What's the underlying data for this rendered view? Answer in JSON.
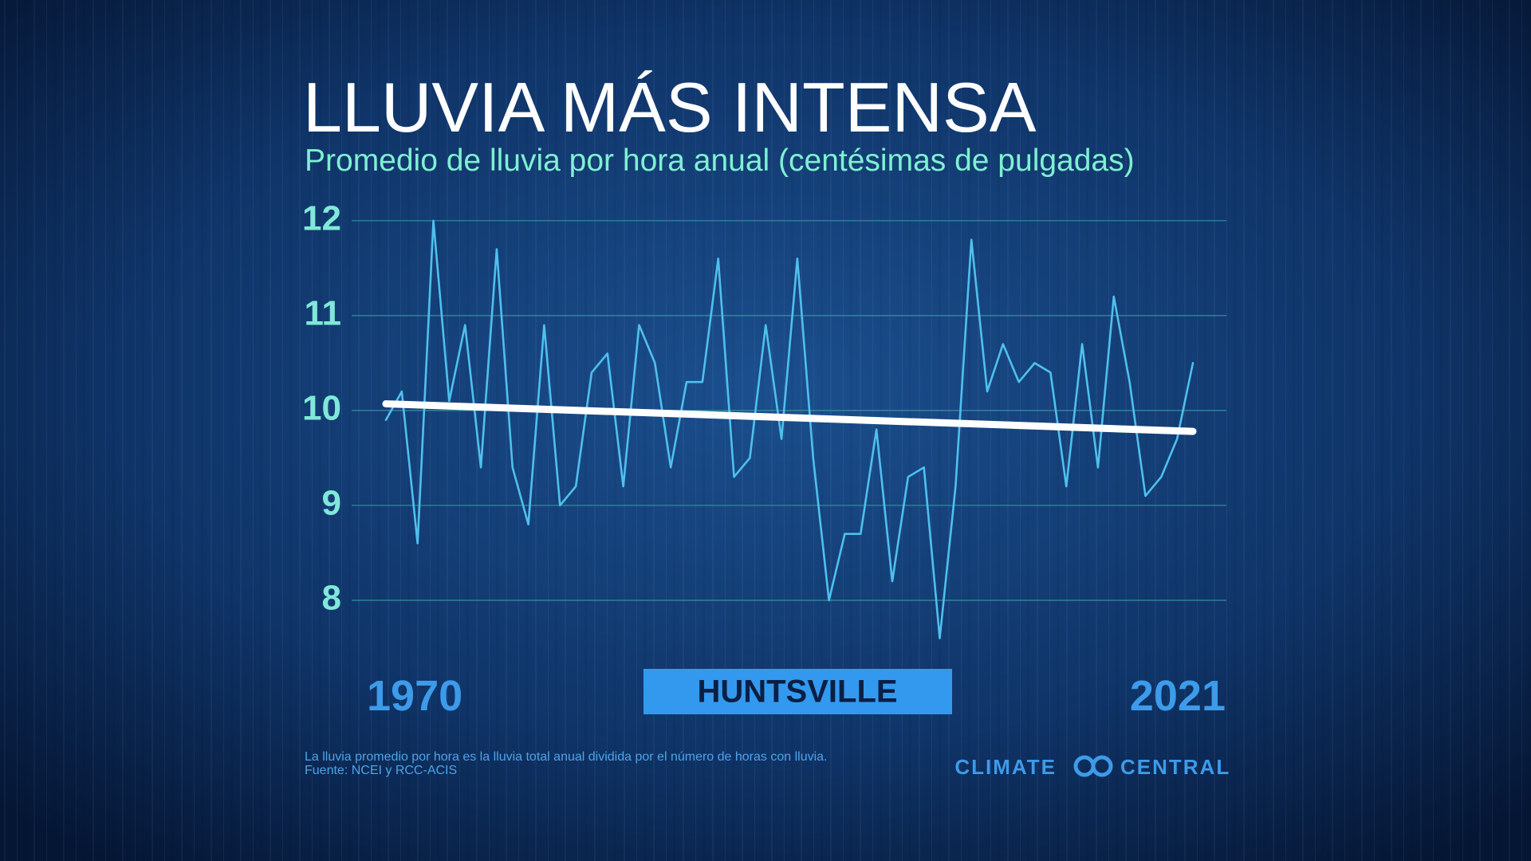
{
  "chart_data": {
    "type": "line",
    "title": "LLUVIA MÁS INTENSA",
    "subtitle": "Promedio de lluvia por hora anual (centésimas de pulgadas)",
    "location": "HUNTSVILLE",
    "notes": [
      "La lluvia promedio por hora es la lluvia total anual dividida por el número de horas con lluvia.",
      "Fuente: NCEI y RCC-ACIS"
    ],
    "logo": {
      "left": "CLIMATE",
      "right": "CENTRAL"
    },
    "x": [
      1970,
      1971,
      1972,
      1973,
      1974,
      1975,
      1976,
      1977,
      1978,
      1979,
      1980,
      1981,
      1982,
      1983,
      1984,
      1985,
      1986,
      1987,
      1988,
      1989,
      1990,
      1991,
      1992,
      1993,
      1994,
      1995,
      1996,
      1997,
      1998,
      1999,
      2000,
      2001,
      2002,
      2003,
      2004,
      2005,
      2006,
      2007,
      2008,
      2009,
      2010,
      2011,
      2012,
      2013,
      2014,
      2015,
      2016,
      2017,
      2018,
      2019,
      2020,
      2021
    ],
    "values": [
      9.9,
      10.2,
      8.6,
      12.0,
      10.1,
      10.9,
      9.4,
      11.7,
      9.4,
      8.8,
      10.9,
      9.0,
      9.2,
      10.4,
      10.6,
      9.2,
      10.9,
      10.5,
      9.4,
      10.3,
      10.3,
      11.6,
      9.3,
      9.5,
      10.9,
      9.7,
      11.6,
      9.5,
      8.0,
      8.7,
      8.7,
      9.8,
      8.2,
      9.3,
      9.4,
      7.6,
      9.2,
      11.8,
      10.2,
      10.7,
      10.3,
      10.5,
      10.4,
      9.2,
      10.7,
      9.4,
      11.2,
      10.3,
      9.1,
      9.3,
      9.7,
      10.5
    ],
    "color": "#4fc0ee",
    "trend": {
      "x": [
        1970,
        2021
      ],
      "values": [
        10.07,
        9.78
      ],
      "color": "#ffffff"
    },
    "xlim": [
      1970,
      2021
    ],
    "xticks": [
      1970,
      2021
    ],
    "ylim": [
      7.5,
      12.2
    ],
    "yticks": [
      8,
      9,
      10,
      11,
      12
    ],
    "grid": true
  }
}
